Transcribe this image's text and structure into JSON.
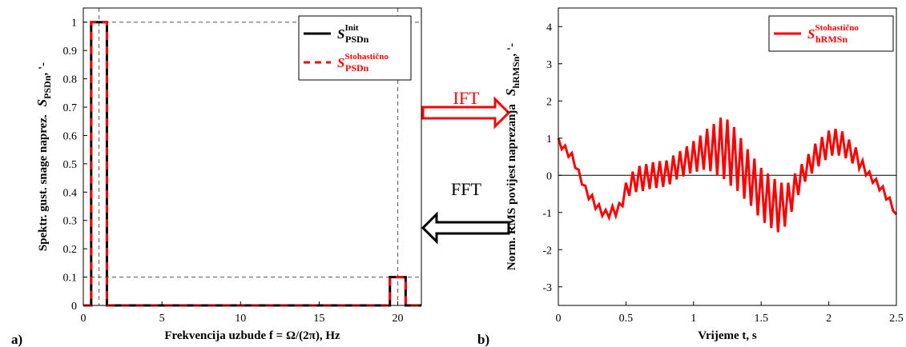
{
  "chart_data": [
    {
      "type": "line",
      "panel_label": "a)",
      "xlabel": "Frekvencija uzbude  f = Ω/(2π), Hz",
      "ylabel": "Spektr. gust. snage naprez.",
      "ylabel_symbol": "S",
      "ylabel_sub": "PSDn",
      "ylabel_unit": ", '-",
      "xlim": [
        0,
        21.5
      ],
      "ylim": [
        0,
        1.05
      ],
      "xticks": [
        0,
        5,
        10,
        15,
        20
      ],
      "yticks": [
        0,
        0.1,
        0.2,
        0.3,
        0.4,
        0.5,
        0.6,
        0.7,
        0.8,
        0.9,
        1
      ],
      "ref_hlines": [
        0.1,
        1
      ],
      "ref_vlines": [
        1,
        20
      ],
      "ref_style": "dashed",
      "legend": "upper right",
      "series": [
        {
          "name": "S",
          "name_sup": "Init",
          "name_sub": "PSDn",
          "color": "#000000",
          "dashed": false,
          "x": [
            0,
            0.5,
            0.5,
            1.5,
            1.5,
            19.5,
            19.5,
            20.5,
            20.5,
            21.5
          ],
          "values": [
            0,
            0,
            1,
            1,
            0,
            0,
            0.1,
            0.1,
            0,
            0
          ]
        },
        {
          "name": "S",
          "name_sup": "Stohastično",
          "name_sub": "PSDn",
          "color": "#ff0000",
          "dashed": true,
          "x": [
            0,
            0.5,
            0.5,
            1.5,
            1.5,
            19.5,
            19.5,
            20.5,
            20.5,
            21.5
          ],
          "values": [
            0,
            0,
            1,
            1,
            0,
            0,
            0.1,
            0.1,
            0,
            0
          ]
        }
      ]
    },
    {
      "type": "line",
      "panel_label": "b)",
      "xlabel": "Vrijeme  t, s",
      "ylabel": "Norm. RMS povijest naprezanja",
      "ylabel_symbol": "S",
      "ylabel_sub": "hRMSn",
      "ylabel_unit": ", '-",
      "xlim": [
        0,
        2.5
      ],
      "ylim": [
        -3.5,
        4.5
      ],
      "xticks": [
        0,
        0.5,
        1,
        1.5,
        2,
        2.5
      ],
      "yticks": [
        -3,
        -2,
        -1,
        0,
        1,
        2,
        3,
        4
      ],
      "ref_hlines": [
        0
      ],
      "ref_vlines": [],
      "ref_style": "solid",
      "legend": "upper right",
      "series": [
        {
          "name": "S",
          "name_sup": "Stohastično",
          "name_sub": "hRMSn",
          "color": "#ff0000",
          "dashed": false,
          "x": [
            0,
            0.025,
            0.05,
            0.075,
            0.1,
            0.125,
            0.15,
            0.175,
            0.2,
            0.225,
            0.25,
            0.275,
            0.3,
            0.325,
            0.35,
            0.375,
            0.4,
            0.425,
            0.45,
            0.475,
            0.5,
            0.525,
            0.55,
            0.575,
            0.6,
            0.625,
            0.65,
            0.675,
            0.7,
            0.725,
            0.75,
            0.775,
            0.8,
            0.825,
            0.85,
            0.875,
            0.9,
            0.925,
            0.95,
            0.975,
            1,
            1.025,
            1.05,
            1.075,
            1.1,
            1.125,
            1.15,
            1.175,
            1.2,
            1.225,
            1.25,
            1.275,
            1.3,
            1.325,
            1.35,
            1.375,
            1.4,
            1.425,
            1.45,
            1.475,
            1.5,
            1.525,
            1.55,
            1.575,
            1.6,
            1.625,
            1.65,
            1.675,
            1.7,
            1.725,
            1.75,
            1.775,
            1.8,
            1.825,
            1.85,
            1.875,
            1.9,
            1.925,
            1.95,
            1.975,
            2,
            2.025,
            2.05,
            2.075,
            2.1,
            2.125,
            2.15,
            2.175,
            2.2,
            2.225,
            2.25,
            2.275,
            2.3,
            2.325,
            2.35,
            2.375,
            2.4,
            2.425,
            2.45,
            2.475,
            2.5
          ],
          "values": [
            1.0,
            0.7,
            0.8,
            0.5,
            0.6,
            0.2,
            0.15,
            -0.25,
            -0.28,
            -0.64,
            -0.53,
            -0.9,
            -0.78,
            -1.09,
            -0.93,
            -1.14,
            -0.83,
            -1.09,
            -0.75,
            -0.83,
            -0.2,
            -0.55,
            0.1,
            -0.45,
            0.25,
            -0.42,
            0.3,
            -0.37,
            0.35,
            -0.34,
            0.38,
            -0.31,
            0.4,
            -0.24,
            0.53,
            -0.11,
            0.65,
            -0.03,
            0.78,
            0.05,
            0.92,
            0.1,
            1.07,
            0.15,
            1.25,
            0.11,
            1.38,
            -0.01,
            1.55,
            -0.1,
            1.5,
            -0.28,
            1.3,
            -0.42,
            1.0,
            -0.63,
            0.7,
            -0.82,
            0.45,
            -1.08,
            0.2,
            -1.28,
            0.05,
            -1.42,
            -0.1,
            -1.53,
            -0.2,
            -1.38,
            -0.2,
            -0.98,
            0.05,
            -0.53,
            0.3,
            -0.17,
            0.57,
            0.05,
            0.85,
            0.24,
            1.03,
            0.41,
            1.2,
            0.53,
            1.25,
            0.53,
            1.18,
            0.46,
            0.96,
            0.32,
            0.75,
            0.18,
            0.4,
            0.0,
            0.1,
            -0.2,
            -0.1,
            -0.4,
            -0.3,
            -0.65,
            -0.6,
            -0.95,
            -1.05
          ]
        }
      ]
    }
  ],
  "arrows": [
    {
      "label": "IFT",
      "color": "#ff0000"
    },
    {
      "label": "FFT",
      "color": "#000000"
    }
  ]
}
